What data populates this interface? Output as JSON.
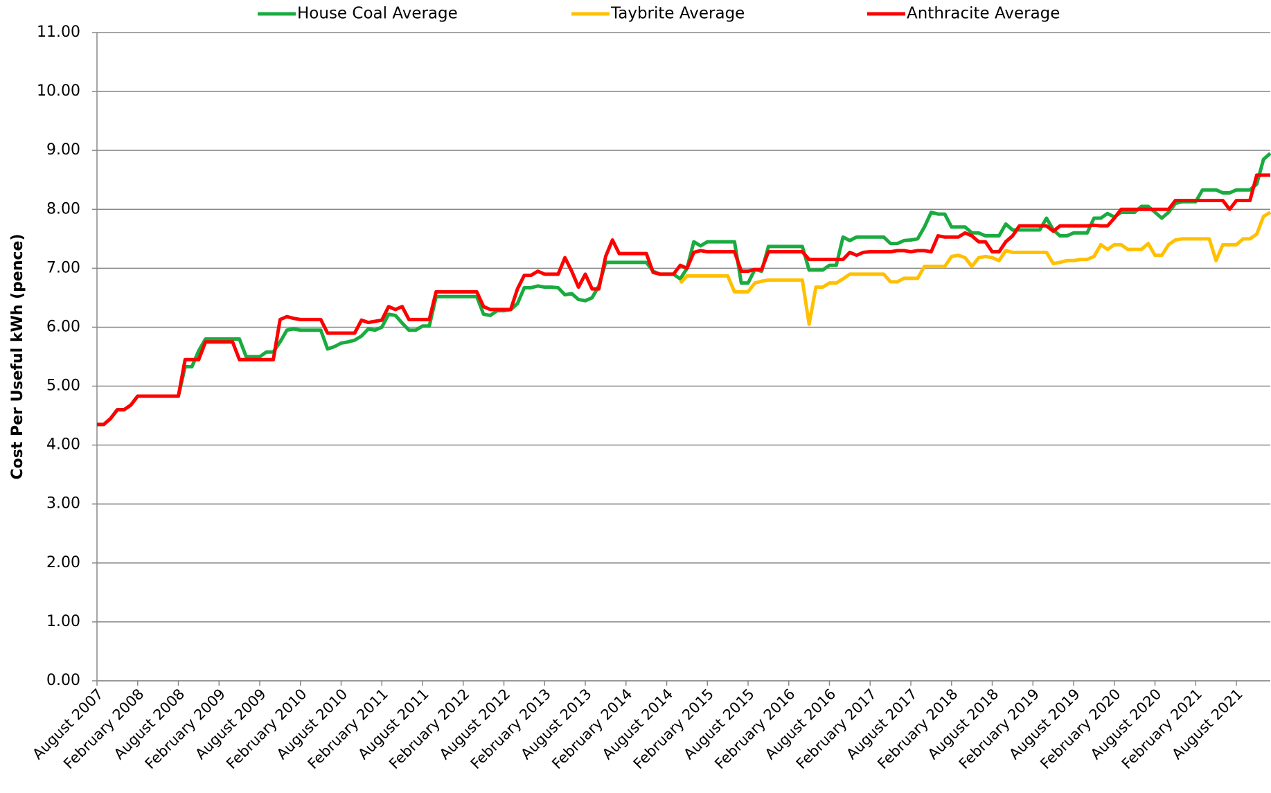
{
  "chart_data": {
    "type": "line",
    "y_label": "Cost Per Useful kWh (pence)",
    "categories": [
      "August 2007",
      null,
      null,
      null,
      null,
      null,
      "February 2008",
      null,
      null,
      null,
      null,
      null,
      "August 2008",
      null,
      null,
      null,
      null,
      null,
      "February 2009",
      null,
      null,
      null,
      null,
      null,
      "August 2009",
      null,
      null,
      null,
      null,
      null,
      "February 2010",
      null,
      null,
      null,
      null,
      null,
      "August 2010",
      null,
      null,
      null,
      null,
      null,
      "February 2011",
      null,
      null,
      null,
      null,
      null,
      "August 2011",
      null,
      null,
      null,
      null,
      null,
      "February 2012",
      null,
      null,
      null,
      null,
      null,
      "August 2012",
      null,
      null,
      null,
      null,
      null,
      "February 2013",
      null,
      null,
      null,
      null,
      null,
      "August 2013",
      null,
      null,
      null,
      null,
      null,
      "February 2014",
      null,
      null,
      null,
      null,
      null,
      "August 2014",
      null,
      null,
      null,
      null,
      null,
      "February 2015",
      null,
      null,
      null,
      null,
      null,
      "August 2015",
      null,
      null,
      null,
      null,
      null,
      "February 2016",
      null,
      null,
      null,
      null,
      null,
      "August 2016",
      null,
      null,
      null,
      null,
      null,
      "February 2017",
      null,
      null,
      null,
      null,
      null,
      "August 2017",
      null,
      null,
      null,
      null,
      null,
      "February 2018",
      null,
      null,
      null,
      null,
      null,
      "August 2018",
      null,
      null,
      null,
      null,
      null,
      "February 2019",
      null,
      null,
      null,
      null,
      null,
      "August 2019",
      null,
      null,
      null,
      null,
      null,
      "February 2020",
      null,
      null,
      null,
      null,
      null,
      "August 2020",
      null,
      null,
      null,
      null,
      null,
      "February 2021",
      null,
      null,
      null,
      null,
      null,
      "August 2021",
      null,
      null,
      null,
      null,
      null
    ],
    "series": [
      {
        "name": "House Coal Average",
        "color": "#1aab40",
        "values": [
          4.35,
          4.35,
          4.45,
          4.6,
          4.6,
          4.68,
          4.83,
          4.83,
          4.83,
          4.83,
          4.83,
          4.83,
          4.83,
          5.33,
          5.33,
          5.6,
          5.8,
          5.8,
          5.8,
          5.8,
          5.8,
          5.8,
          5.5,
          5.5,
          5.5,
          5.58,
          5.58,
          5.75,
          5.95,
          5.97,
          5.95,
          5.95,
          5.95,
          5.95,
          5.63,
          5.67,
          5.73,
          5.75,
          5.78,
          5.85,
          5.97,
          5.95,
          6.0,
          6.22,
          6.2,
          6.07,
          5.95,
          5.95,
          6.02,
          6.02,
          6.52,
          6.52,
          6.52,
          6.52,
          6.52,
          6.52,
          6.52,
          6.22,
          6.2,
          6.28,
          6.28,
          6.3,
          6.4,
          6.67,
          6.67,
          6.7,
          6.68,
          6.68,
          6.67,
          6.55,
          6.57,
          6.47,
          6.45,
          6.5,
          6.7,
          7.1,
          7.1,
          7.1,
          7.1,
          7.1,
          7.1,
          7.1,
          6.95,
          6.9,
          6.9,
          6.9,
          6.82,
          7.0,
          7.45,
          7.38,
          7.45,
          7.45,
          7.45,
          7.45,
          7.45,
          6.75,
          6.75,
          6.98,
          6.95,
          7.37,
          7.37,
          7.37,
          7.37,
          7.37,
          7.37,
          6.97,
          6.97,
          6.97,
          7.05,
          7.05,
          7.53,
          7.47,
          7.53,
          7.53,
          7.53,
          7.53,
          7.53,
          7.42,
          7.42,
          7.47,
          7.48,
          7.5,
          7.7,
          7.95,
          7.92,
          7.92,
          7.7,
          7.7,
          7.7,
          7.6,
          7.6,
          7.55,
          7.55,
          7.55,
          7.75,
          7.65,
          7.65,
          7.65,
          7.65,
          7.65,
          7.85,
          7.65,
          7.55,
          7.55,
          7.6,
          7.6,
          7.6,
          7.85,
          7.85,
          7.93,
          7.87,
          7.95,
          7.95,
          7.95,
          8.05,
          8.05,
          7.95,
          7.85,
          7.95,
          8.1,
          8.13,
          8.13,
          8.13,
          8.33,
          8.33,
          8.33,
          8.28,
          8.28,
          8.33,
          8.33,
          8.33,
          8.43,
          8.85,
          8.95
        ]
      },
      {
        "name": "Taybrite Average",
        "color": "#ffc000",
        "values": [
          null,
          null,
          null,
          null,
          null,
          null,
          null,
          null,
          null,
          null,
          null,
          null,
          null,
          null,
          null,
          null,
          null,
          null,
          null,
          null,
          null,
          null,
          null,
          null,
          null,
          null,
          null,
          null,
          null,
          null,
          null,
          null,
          null,
          null,
          null,
          null,
          null,
          null,
          null,
          null,
          null,
          null,
          null,
          null,
          null,
          null,
          null,
          null,
          null,
          null,
          null,
          null,
          null,
          null,
          null,
          null,
          null,
          null,
          null,
          null,
          null,
          null,
          null,
          null,
          null,
          null,
          null,
          null,
          null,
          null,
          null,
          null,
          null,
          null,
          null,
          null,
          null,
          null,
          null,
          null,
          null,
          null,
          null,
          null,
          null,
          null,
          6.75,
          6.87,
          6.87,
          6.87,
          6.87,
          6.87,
          6.87,
          6.87,
          6.6,
          6.6,
          6.6,
          6.75,
          6.78,
          6.8,
          6.8,
          6.8,
          6.8,
          6.8,
          6.8,
          6.05,
          6.68,
          6.68,
          6.75,
          6.75,
          6.82,
          6.9,
          6.9,
          6.9,
          6.9,
          6.9,
          6.9,
          6.77,
          6.77,
          6.83,
          6.83,
          6.83,
          7.03,
          7.03,
          7.03,
          7.03,
          7.2,
          7.22,
          7.18,
          7.03,
          7.18,
          7.2,
          7.18,
          7.13,
          7.3,
          7.27,
          7.27,
          7.27,
          7.27,
          7.27,
          7.27,
          7.08,
          7.1,
          7.13,
          7.13,
          7.15,
          7.15,
          7.2,
          7.4,
          7.32,
          7.4,
          7.4,
          7.32,
          7.32,
          7.32,
          7.42,
          7.22,
          7.22,
          7.4,
          7.48,
          7.5,
          7.5,
          7.5,
          7.5,
          7.5,
          7.13,
          7.4,
          7.4,
          7.4,
          7.5,
          7.5,
          7.58,
          7.88,
          7.95
        ]
      },
      {
        "name": "Anthracite Average",
        "color": "#ff0000",
        "values": [
          4.35,
          4.35,
          4.45,
          4.6,
          4.6,
          4.68,
          4.83,
          4.83,
          4.83,
          4.83,
          4.83,
          4.83,
          4.83,
          5.45,
          5.45,
          5.45,
          5.75,
          5.75,
          5.75,
          5.75,
          5.75,
          5.45,
          5.45,
          5.45,
          5.45,
          5.45,
          5.45,
          6.13,
          6.18,
          6.15,
          6.13,
          6.13,
          6.13,
          6.13,
          5.9,
          5.9,
          5.9,
          5.9,
          5.9,
          6.12,
          6.08,
          6.1,
          6.12,
          6.35,
          6.3,
          6.35,
          6.13,
          6.13,
          6.13,
          6.13,
          6.6,
          6.6,
          6.6,
          6.6,
          6.6,
          6.6,
          6.6,
          6.35,
          6.3,
          6.3,
          6.3,
          6.3,
          6.65,
          6.88,
          6.88,
          6.95,
          6.9,
          6.9,
          6.9,
          7.18,
          6.95,
          6.68,
          6.9,
          6.65,
          6.65,
          7.2,
          7.48,
          7.25,
          7.25,
          7.25,
          7.25,
          7.25,
          6.93,
          6.9,
          6.9,
          6.9,
          7.05,
          7.0,
          7.27,
          7.3,
          7.28,
          7.28,
          7.28,
          7.28,
          7.28,
          6.95,
          6.95,
          6.98,
          6.98,
          7.28,
          7.28,
          7.28,
          7.28,
          7.28,
          7.28,
          7.15,
          7.15,
          7.15,
          7.15,
          7.15,
          7.15,
          7.27,
          7.22,
          7.27,
          7.28,
          7.28,
          7.28,
          7.28,
          7.3,
          7.3,
          7.28,
          7.3,
          7.3,
          7.28,
          7.55,
          7.53,
          7.53,
          7.53,
          7.6,
          7.55,
          7.45,
          7.45,
          7.28,
          7.28,
          7.45,
          7.55,
          7.72,
          7.72,
          7.72,
          7.72,
          7.72,
          7.63,
          7.72,
          7.72,
          7.72,
          7.72,
          7.72,
          7.73,
          7.72,
          7.72,
          7.85,
          8.0,
          8.0,
          8.0,
          8.0,
          8.0,
          8.0,
          8.0,
          8.0,
          8.15,
          8.15,
          8.15,
          8.15,
          8.15,
          8.15,
          8.15,
          8.15,
          8.0,
          8.15,
          8.15,
          8.15,
          8.58,
          8.58,
          8.58
        ]
      }
    ],
    "ylim": [
      0,
      11
    ],
    "yticks": [
      {
        "value": 0,
        "label": "0.00"
      },
      {
        "value": 1,
        "label": "1.00"
      },
      {
        "value": 2,
        "label": "2.00"
      },
      {
        "value": 3,
        "label": "3.00"
      },
      {
        "value": 4,
        "label": "4.00"
      },
      {
        "value": 5,
        "label": "5.00"
      },
      {
        "value": 6,
        "label": "6.00"
      },
      {
        "value": 7,
        "label": "7.00"
      },
      {
        "value": 8,
        "label": "8.00"
      },
      {
        "value": 9,
        "label": "9.00"
      },
      {
        "value": 10,
        "label": "10.00"
      },
      {
        "value": 11,
        "label": "11.00"
      }
    ],
    "grid": true,
    "legend": "top"
  }
}
